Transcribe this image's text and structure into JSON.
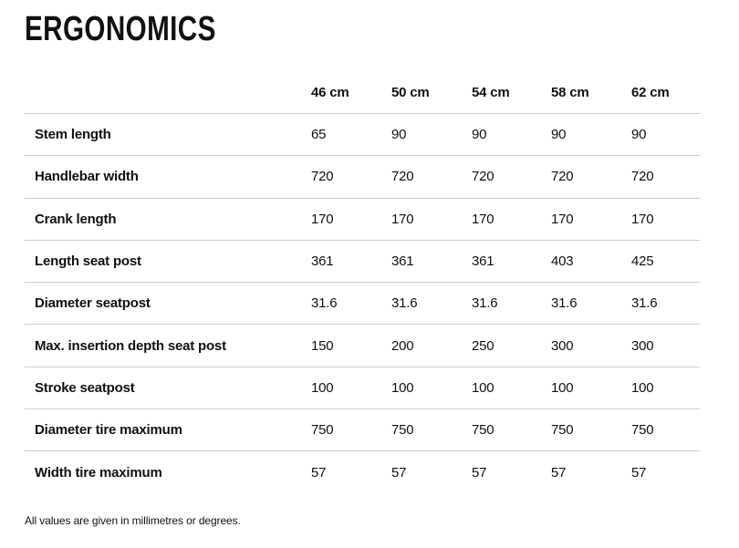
{
  "page": {
    "title": "ERGONOMICS",
    "footnote": "All values are given in millimetres or degrees."
  },
  "chart_data": {
    "type": "table",
    "title": "ERGONOMICS",
    "columns": [
      "46 cm",
      "50 cm",
      "54 cm",
      "58 cm",
      "62 cm"
    ],
    "rows": [
      {
        "label": "Stem length",
        "values": [
          "65",
          "90",
          "90",
          "90",
          "90"
        ]
      },
      {
        "label": "Handlebar width",
        "values": [
          "720",
          "720",
          "720",
          "720",
          "720"
        ]
      },
      {
        "label": "Crank length",
        "values": [
          "170",
          "170",
          "170",
          "170",
          "170"
        ]
      },
      {
        "label": "Length seat post",
        "values": [
          "361",
          "361",
          "361",
          "403",
          "425"
        ]
      },
      {
        "label": "Diameter seatpost",
        "values": [
          "31.6",
          "31.6",
          "31.6",
          "31.6",
          "31.6"
        ]
      },
      {
        "label": "Max. insertion depth seat post",
        "values": [
          "150",
          "200",
          "250",
          "300",
          "300"
        ]
      },
      {
        "label": "Stroke seatpost",
        "values": [
          "100",
          "100",
          "100",
          "100",
          "100"
        ]
      },
      {
        "label": "Diameter tire maximum",
        "values": [
          "750",
          "750",
          "750",
          "750",
          "750"
        ]
      },
      {
        "label": "Width tire maximum",
        "values": [
          "57",
          "57",
          "57",
          "57",
          "57"
        ]
      }
    ],
    "footnote": "All values are given in millimetres or degrees.",
    "layout": {
      "grid": "horizontal-rules-only",
      "last_row_rule": false
    }
  },
  "colors": {
    "background": "#ffffff",
    "text": "#111111",
    "divider": "#cccccc"
  }
}
